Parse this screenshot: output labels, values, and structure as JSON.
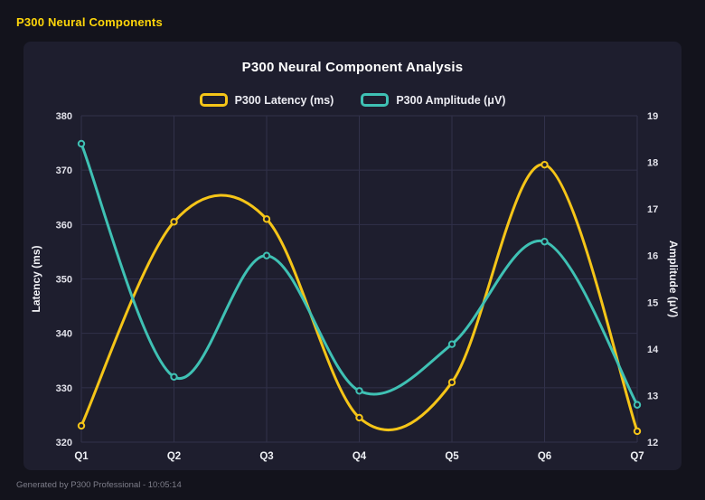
{
  "header": {
    "title": "P300 Neural Components"
  },
  "footer": {
    "text": "Generated by P300 Professional - 10:05:14"
  },
  "colors": {
    "page_bg": "#13131c",
    "panel_bg": "#1e1e2e",
    "grid": "#31314a",
    "accent_yellow": "#f5c518",
    "accent_teal": "#3fc1b4",
    "header_text": "#ffd60a",
    "title_text": "#ffffff",
    "tick_text": "#e2e2ea",
    "footer_text": "#7e7e8a"
  },
  "chart_data": {
    "type": "line",
    "title": "P300 Neural Component Analysis",
    "categories": [
      "Q1",
      "Q2",
      "Q3",
      "Q4",
      "Q5",
      "Q6",
      "Q7"
    ],
    "series": [
      {
        "name": "P300 Latency (ms)",
        "axis": "left",
        "color": "#f5c518",
        "values": [
          323,
          360.5,
          361,
          324.5,
          331,
          371,
          322
        ]
      },
      {
        "name": "P300 Amplitude (μV)",
        "axis": "right",
        "color": "#3fc1b4",
        "values": [
          18.4,
          13.4,
          16.0,
          13.1,
          14.1,
          16.3,
          12.8
        ]
      }
    ],
    "left_axis": {
      "label": "Latency (ms)",
      "min": 320,
      "max": 380,
      "step": 10
    },
    "right_axis": {
      "label": "Amplitude (μV)",
      "min": 12,
      "max": 19,
      "step": 1
    },
    "grid": true,
    "curve": "smooth",
    "legend_position": "top"
  }
}
